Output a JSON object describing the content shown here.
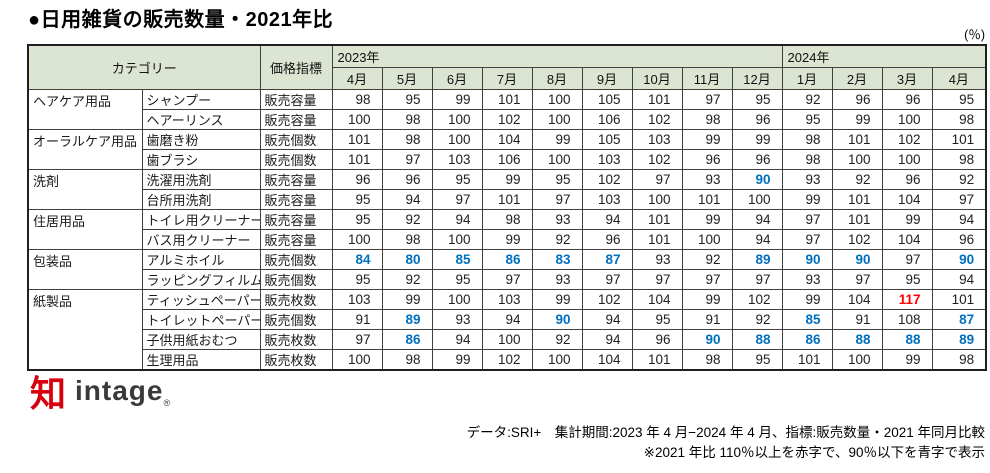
{
  "title": "●日用雑貨の販売数量・2021年比",
  "unit_label": "(％)",
  "table": {
    "header": {
      "category": "カテゴリー",
      "indicator": "価格指標",
      "year_2023": "2023年",
      "year_2024": "2024年",
      "months": [
        "4月",
        "5月",
        "6月",
        "7月",
        "8月",
        "9月",
        "10月",
        "11月",
        "12月",
        "1月",
        "2月",
        "3月",
        "4月"
      ]
    },
    "groups": [
      {
        "category": "ヘアケア用品",
        "rows": [
          {
            "item": "シャンプー",
            "indicator": "販売容量",
            "values": [
              98,
              95,
              99,
              101,
              100,
              105,
              101,
              97,
              95,
              92,
              96,
              96,
              95
            ],
            "blue": [],
            "red": []
          },
          {
            "item": "ヘアーリンス",
            "indicator": "販売容量",
            "values": [
              100,
              98,
              100,
              102,
              100,
              106,
              102,
              98,
              96,
              95,
              99,
              100,
              98
            ],
            "blue": [],
            "red": []
          }
        ]
      },
      {
        "category": "オーラルケア用品",
        "rows": [
          {
            "item": "歯磨き粉",
            "indicator": "販売個数",
            "values": [
              101,
              98,
              100,
              104,
              99,
              105,
              103,
              99,
              99,
              98,
              101,
              102,
              101
            ],
            "blue": [],
            "red": []
          },
          {
            "item": "歯ブラシ",
            "indicator": "販売個数",
            "values": [
              101,
              97,
              103,
              106,
              100,
              103,
              102,
              96,
              96,
              98,
              100,
              100,
              98
            ],
            "blue": [],
            "red": []
          }
        ]
      },
      {
        "category": "洗剤",
        "rows": [
          {
            "item": "洗濯用洗剤",
            "indicator": "販売容量",
            "values": [
              96,
              96,
              95,
              99,
              95,
              102,
              97,
              93,
              90,
              93,
              92,
              96,
              92
            ],
            "blue": [
              8
            ],
            "red": []
          },
          {
            "item": "台所用洗剤",
            "indicator": "販売容量",
            "values": [
              95,
              94,
              97,
              101,
              97,
              103,
              100,
              101,
              100,
              99,
              101,
              104,
              97
            ],
            "blue": [],
            "red": []
          }
        ]
      },
      {
        "category": "住居用品",
        "rows": [
          {
            "item": "トイレ用クリーナー",
            "indicator": "販売容量",
            "values": [
              95,
              92,
              94,
              98,
              93,
              94,
              101,
              99,
              94,
              97,
              101,
              99,
              94
            ],
            "blue": [],
            "red": []
          },
          {
            "item": "バス用クリーナー",
            "indicator": "販売容量",
            "values": [
              100,
              98,
              100,
              99,
              92,
              96,
              101,
              100,
              94,
              97,
              102,
              104,
              96
            ],
            "blue": [],
            "red": []
          }
        ]
      },
      {
        "category": "包装品",
        "rows": [
          {
            "item": "アルミホイル",
            "indicator": "販売個数",
            "values": [
              84,
              80,
              85,
              86,
              83,
              87,
              93,
              92,
              89,
              90,
              90,
              97,
              90
            ],
            "blue": [
              0,
              1,
              2,
              3,
              4,
              5,
              8,
              9,
              10,
              12
            ],
            "red": []
          },
          {
            "item": "ラッピングフィルム",
            "indicator": "販売個数",
            "values": [
              95,
              92,
              95,
              97,
              93,
              97,
              97,
              97,
              97,
              93,
              97,
              95,
              94
            ],
            "blue": [],
            "red": []
          }
        ]
      },
      {
        "category": "紙製品",
        "rows": [
          {
            "item": "ティッシュペーパー",
            "indicator": "販売枚数",
            "values": [
              103,
              99,
              100,
              103,
              99,
              102,
              104,
              99,
              102,
              99,
              104,
              117,
              101
            ],
            "blue": [],
            "red": [
              11
            ]
          },
          {
            "item": "トイレットペーパー",
            "indicator": "販売個数",
            "values": [
              91,
              89,
              93,
              94,
              90,
              94,
              95,
              91,
              92,
              85,
              91,
              108,
              87
            ],
            "blue": [
              1,
              4,
              9,
              12
            ],
            "red": []
          },
          {
            "item": "子供用紙おむつ",
            "indicator": "販売枚数",
            "values": [
              97,
              86,
              94,
              100,
              92,
              94,
              96,
              90,
              88,
              86,
              88,
              88,
              89
            ],
            "blue": [
              1,
              7,
              8,
              9,
              10,
              11,
              12
            ],
            "red": []
          },
          {
            "item": "生理用品",
            "indicator": "販売枚数",
            "values": [
              100,
              98,
              99,
              102,
              100,
              104,
              101,
              98,
              95,
              101,
              100,
              99,
              98
            ],
            "blue": [],
            "red": []
          }
        ]
      }
    ]
  },
  "logo": {
    "mark": "知",
    "text": "intage",
    "reg": "®"
  },
  "footer": {
    "line1": "データ:SRI+　集計期間:2023 年 4 月−2024 年 4 月、指標:販売数量・2021 年同月比較",
    "line2": "※2021 年比 110％以上を赤字で、90％以下を青字で表示"
  },
  "colors": {
    "blue": "#0070C0",
    "red": "#FF0000",
    "header_bg": "#DCE5D2",
    "border": "#404040"
  }
}
